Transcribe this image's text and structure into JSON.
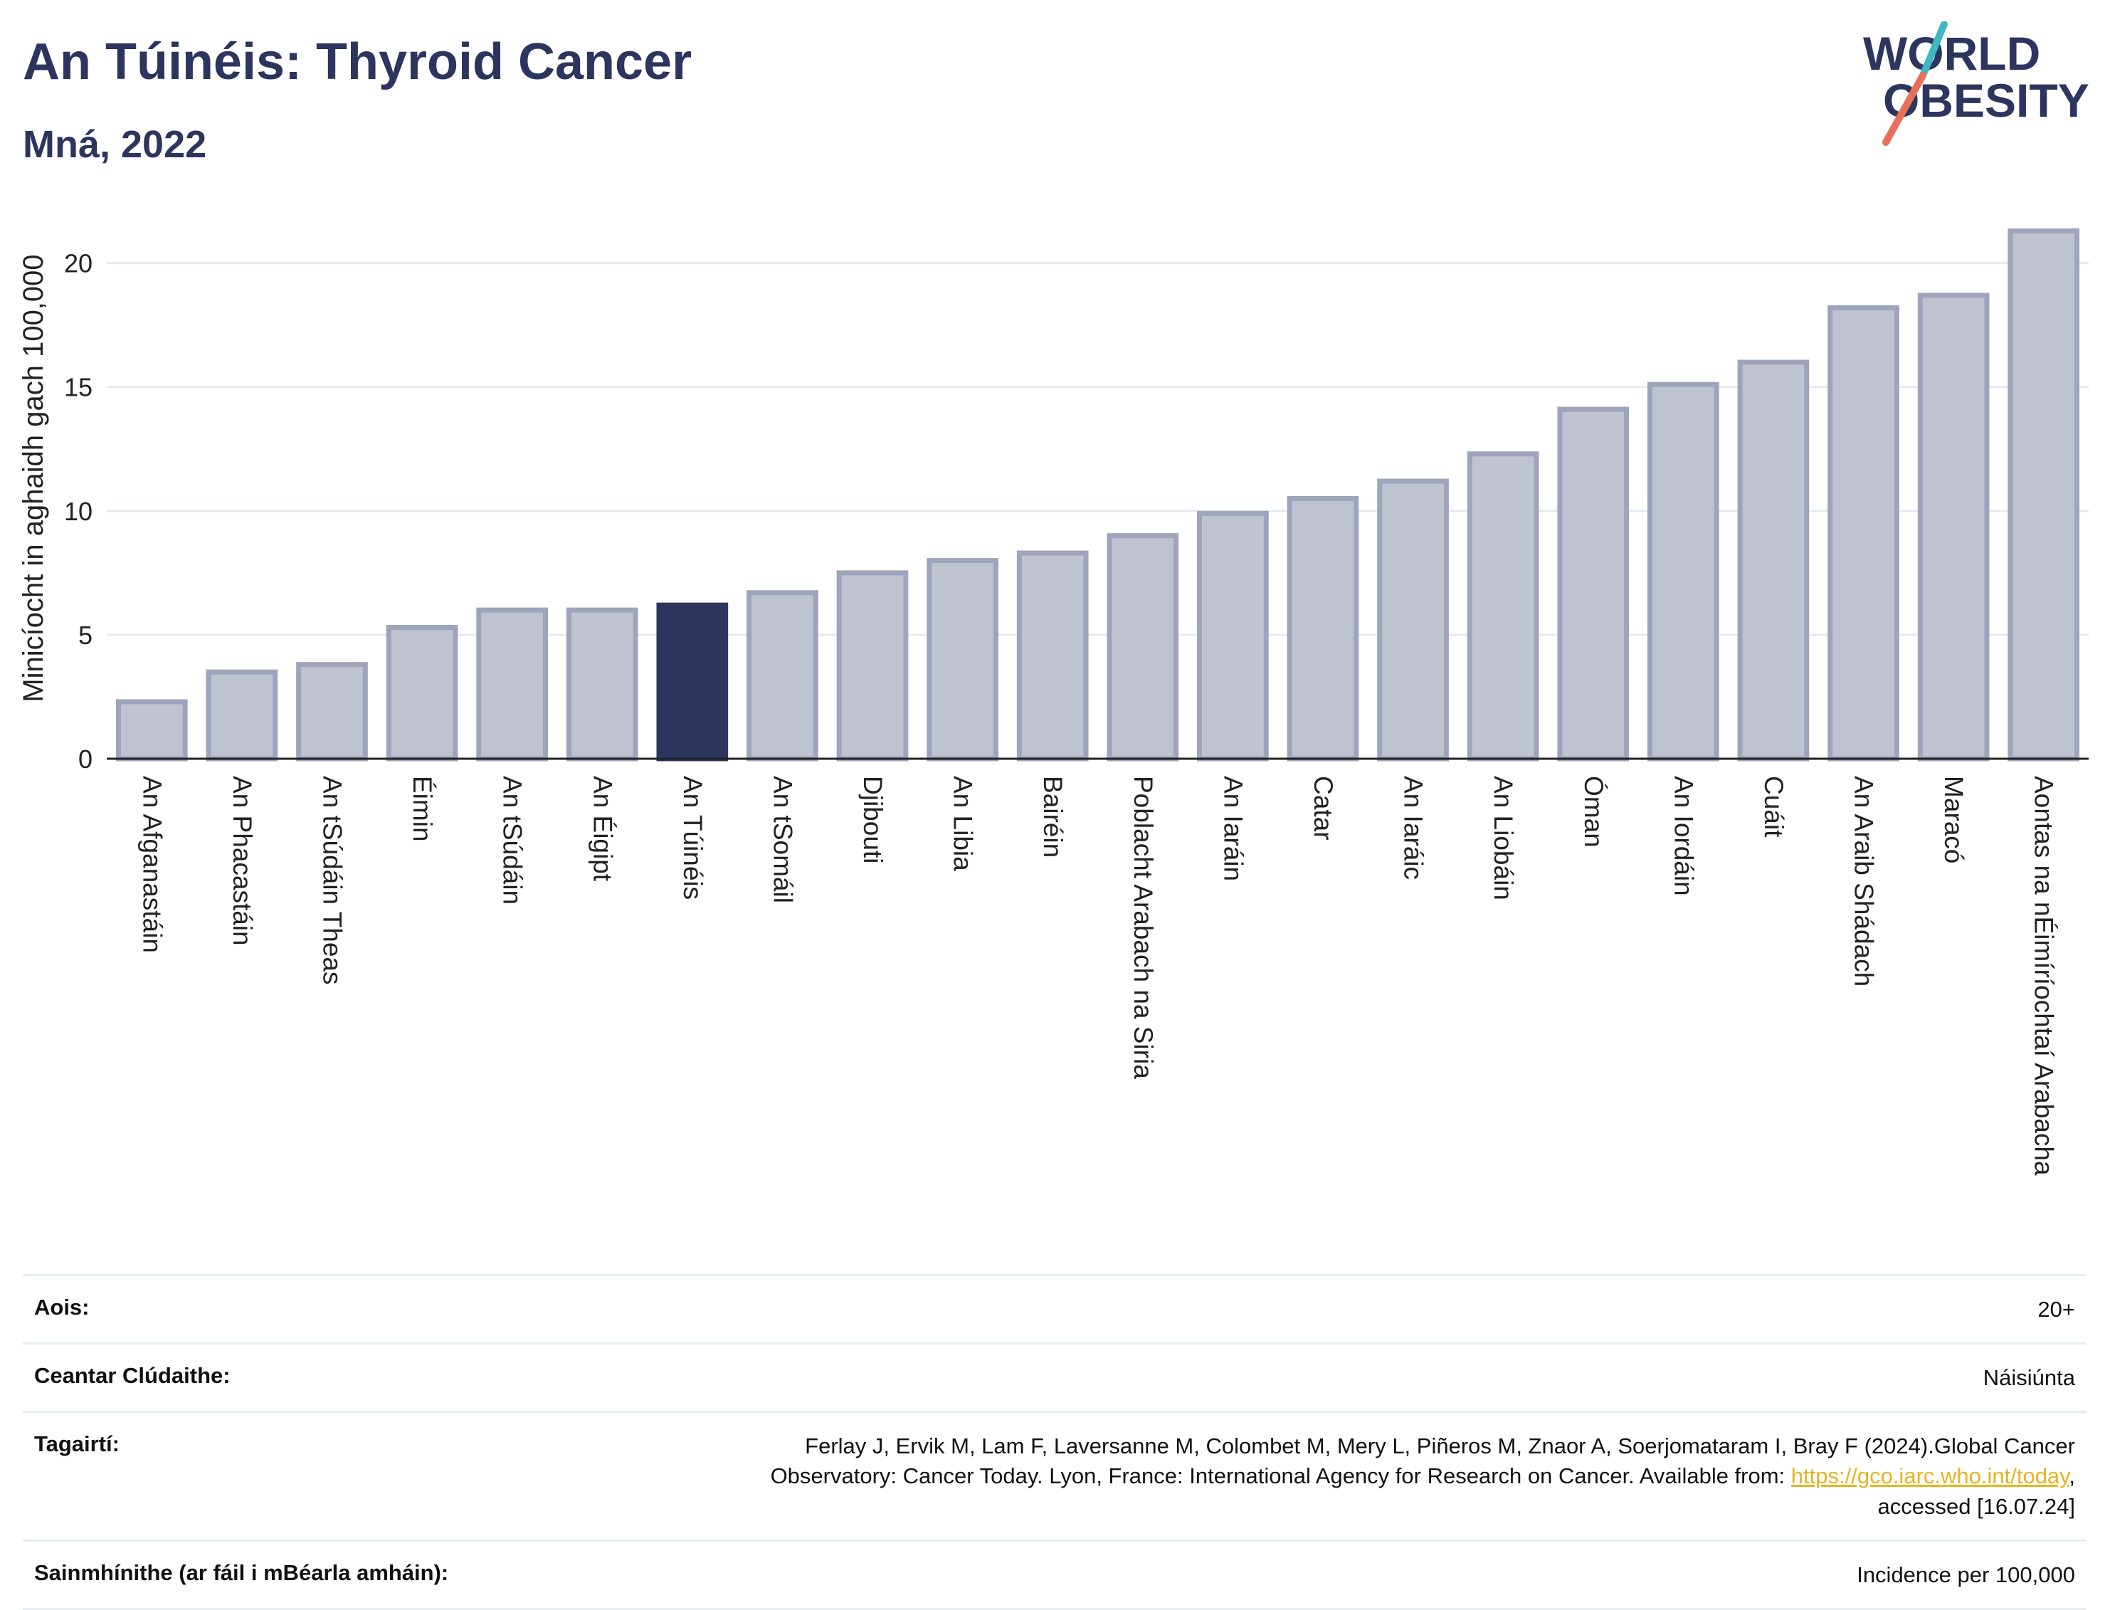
{
  "header": {
    "title": "An Túinéis: Thyroid Cancer",
    "subtitle": "Mná, 2022"
  },
  "logo": {
    "line1": "WORLD",
    "line2": "OBESITY",
    "text_color": "#2b355e",
    "slash_colors": [
      "#3fb8c4",
      "#e8705a"
    ]
  },
  "chart_data": {
    "type": "bar",
    "title": "An Túinéis: Thyroid Cancer",
    "subtitle": "Mná, 2022",
    "ylabel": "Minicíocht in aghaidh gach 100,000",
    "xlabel": "",
    "ylim": [
      0,
      22
    ],
    "yticks": [
      0,
      5,
      10,
      15,
      20
    ],
    "grid": true,
    "highlight_category": "An Túinéis",
    "colors": {
      "bar": "#bfc3d0",
      "bar_edge": "#9ea4bb",
      "highlight": "#2b355e",
      "grid": "#e6e9ef",
      "axis": "#222222"
    },
    "categories": [
      "An Afganastáin",
      "An Phacastáin",
      "An tSúdáin Theas",
      "Éimin",
      "An tSúdáin",
      "An Éigipt",
      "An Túinéis",
      "An tSomáil",
      "Djibouti",
      "An Libia",
      "Bairéin",
      "Poblacht Arabach na Siria",
      "An Iaráin",
      "Catar",
      "An Iaráic",
      "An Liobáin",
      "Óman",
      "An Iordáin",
      "Cuáit",
      "An Araib Shádach",
      "Maracó",
      "Aontas na nÉimíríochtaí Arabacha"
    ],
    "values": [
      2.3,
      3.5,
      3.8,
      5.3,
      6.0,
      6.0,
      6.2,
      6.7,
      7.5,
      8.0,
      8.3,
      9.0,
      9.9,
      10.5,
      11.2,
      12.3,
      14.1,
      15.1,
      16.0,
      18.2,
      18.7,
      21.3
    ]
  },
  "meta": {
    "age_label": "Aois:",
    "age_value": "20+",
    "coverage_label": "Ceantar Clúdaithe:",
    "coverage_value": "Náisiúnta",
    "references_label": "Tagairtí:",
    "references_line1": "Ferlay J, Ervik M, Lam F, Laversanne M, Colombet M, Mery L, Piñeros M, Znaor A, Soerjomataram I, Bray F (2024).Global Cancer",
    "references_line2_pre": "Observatory: Cancer Today. Lyon, France: International Agency for Research on Cancer. Available from: ",
    "references_link": "https://gco.iarc.who.int/today",
    "references_line2_post": ",",
    "references_line3": "accessed [16.07.24]",
    "definitions_label": "Sainmhínithe (ar fáil i mBéarla amháin):",
    "definitions_value": "Incidence per 100,000"
  }
}
